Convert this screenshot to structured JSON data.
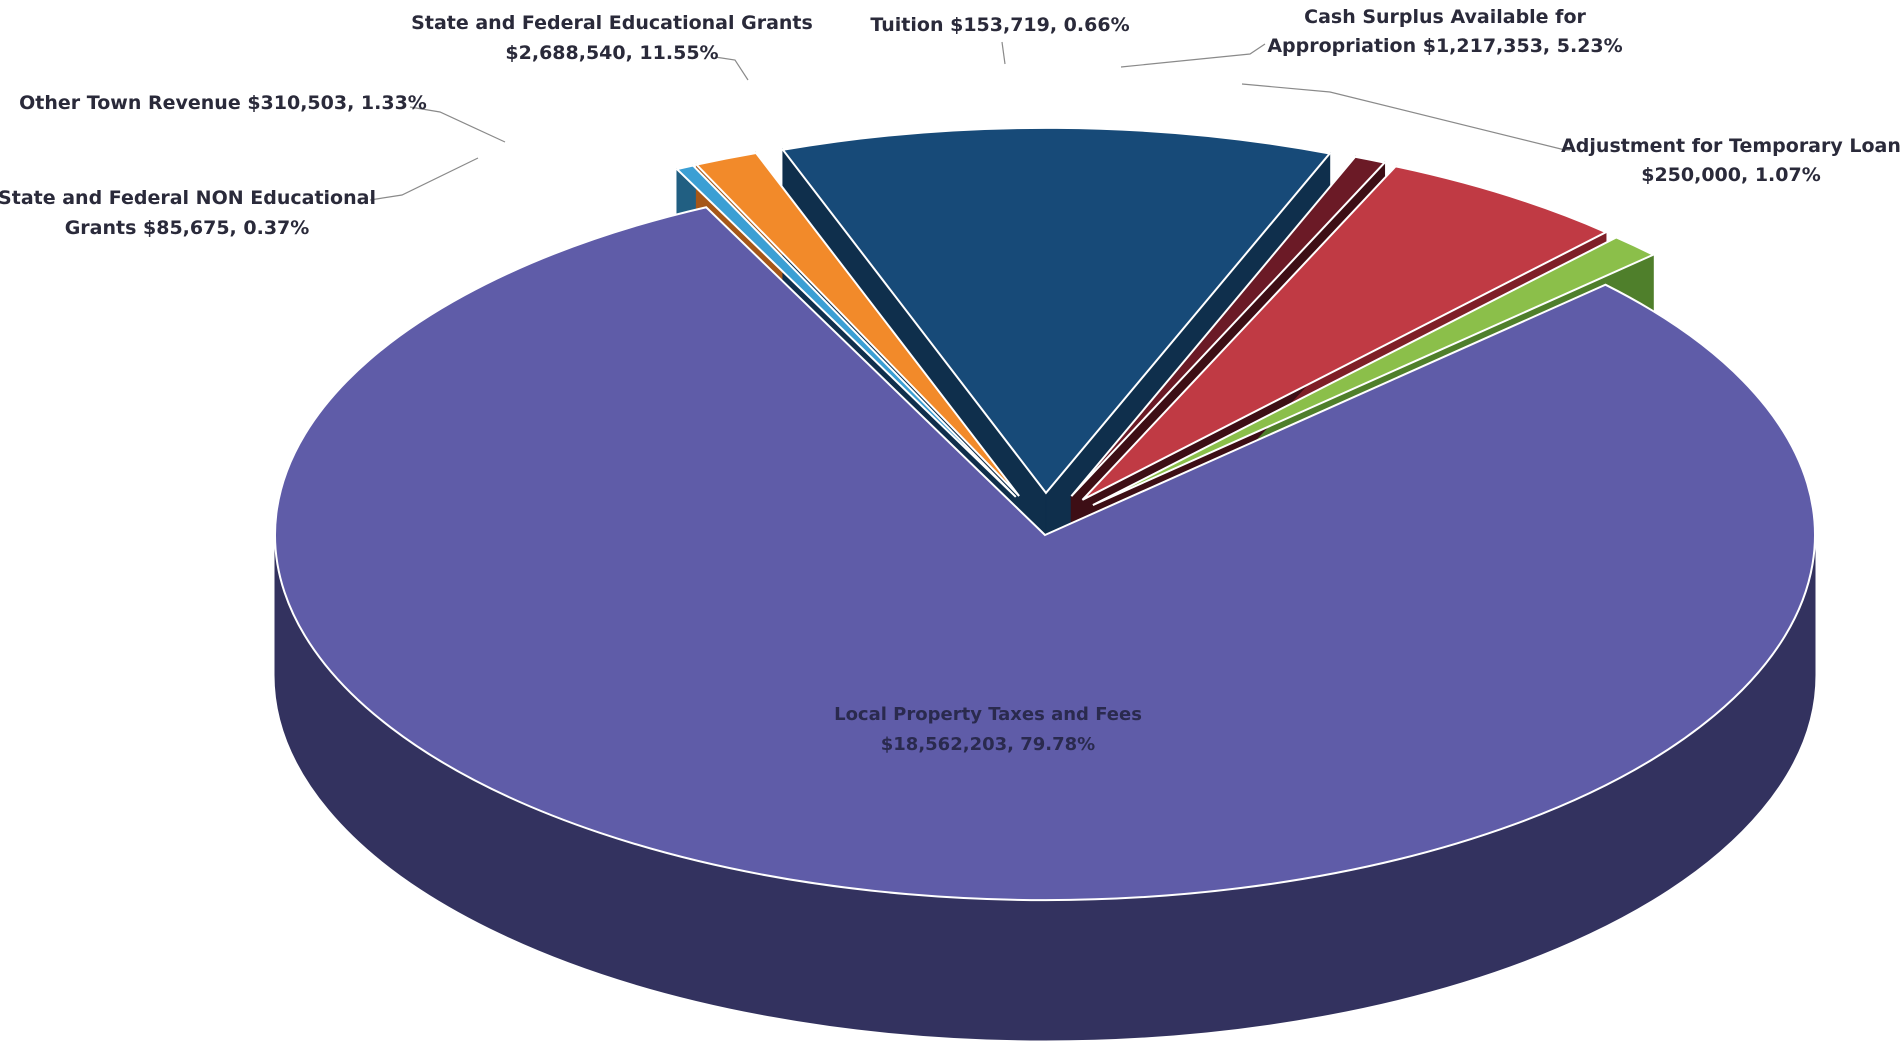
{
  "chart_data": {
    "type": "pie",
    "style": "3d-exploded",
    "title": "",
    "slices": [
      {
        "label_line1": "Cash Surplus Available for",
        "label_line2": "Appropriation   $1,217,353, 5.23%",
        "value": 1217353,
        "percent": 5.23,
        "color": "#c03a44",
        "side_color": "#7e1f27",
        "exploded": true
      },
      {
        "label_line1": "Adjustment for Temporary Loan",
        "label_line2": "$250,000, 1.07%",
        "value": 250000,
        "percent": 1.07,
        "color": "#8bbf4a",
        "side_color": "#4f7f2b",
        "exploded": true
      },
      {
        "label_line1": "Local Property Taxes and Fees",
        "label_line2": "$18,562,203, 79.78%",
        "value": 18562203,
        "percent": 79.78,
        "color": "#5f5ca8",
        "side_color": "#33325f",
        "exploded": false
      },
      {
        "label_line1": "State and Federal NON Educational",
        "label_line2": "Grants  $85,675, 0.37%",
        "value": 85675,
        "percent": 0.37,
        "color": "#3b9fd4",
        "side_color": "#215f82",
        "exploded": true
      },
      {
        "label_line1": "Other Town Revenue $310,503, 1.33%",
        "label_line2": "",
        "value": 310503,
        "percent": 1.33,
        "color": "#f28a2a",
        "side_color": "#a55718",
        "exploded": true
      },
      {
        "label_line1": "State and Federal Educational Grants",
        "label_line2": "$2,688,540, 11.55%",
        "value": 2688540,
        "percent": 11.55,
        "color": "#174a78",
        "side_color": "#0f2f4c",
        "exploded": true
      },
      {
        "label_line1": "Tuition  $153,719, 0.66%",
        "label_line2": "",
        "value": 153719,
        "percent": 0.66,
        "color": "#6b1a26",
        "side_color": "#3d0e15",
        "exploded": true
      }
    ]
  }
}
